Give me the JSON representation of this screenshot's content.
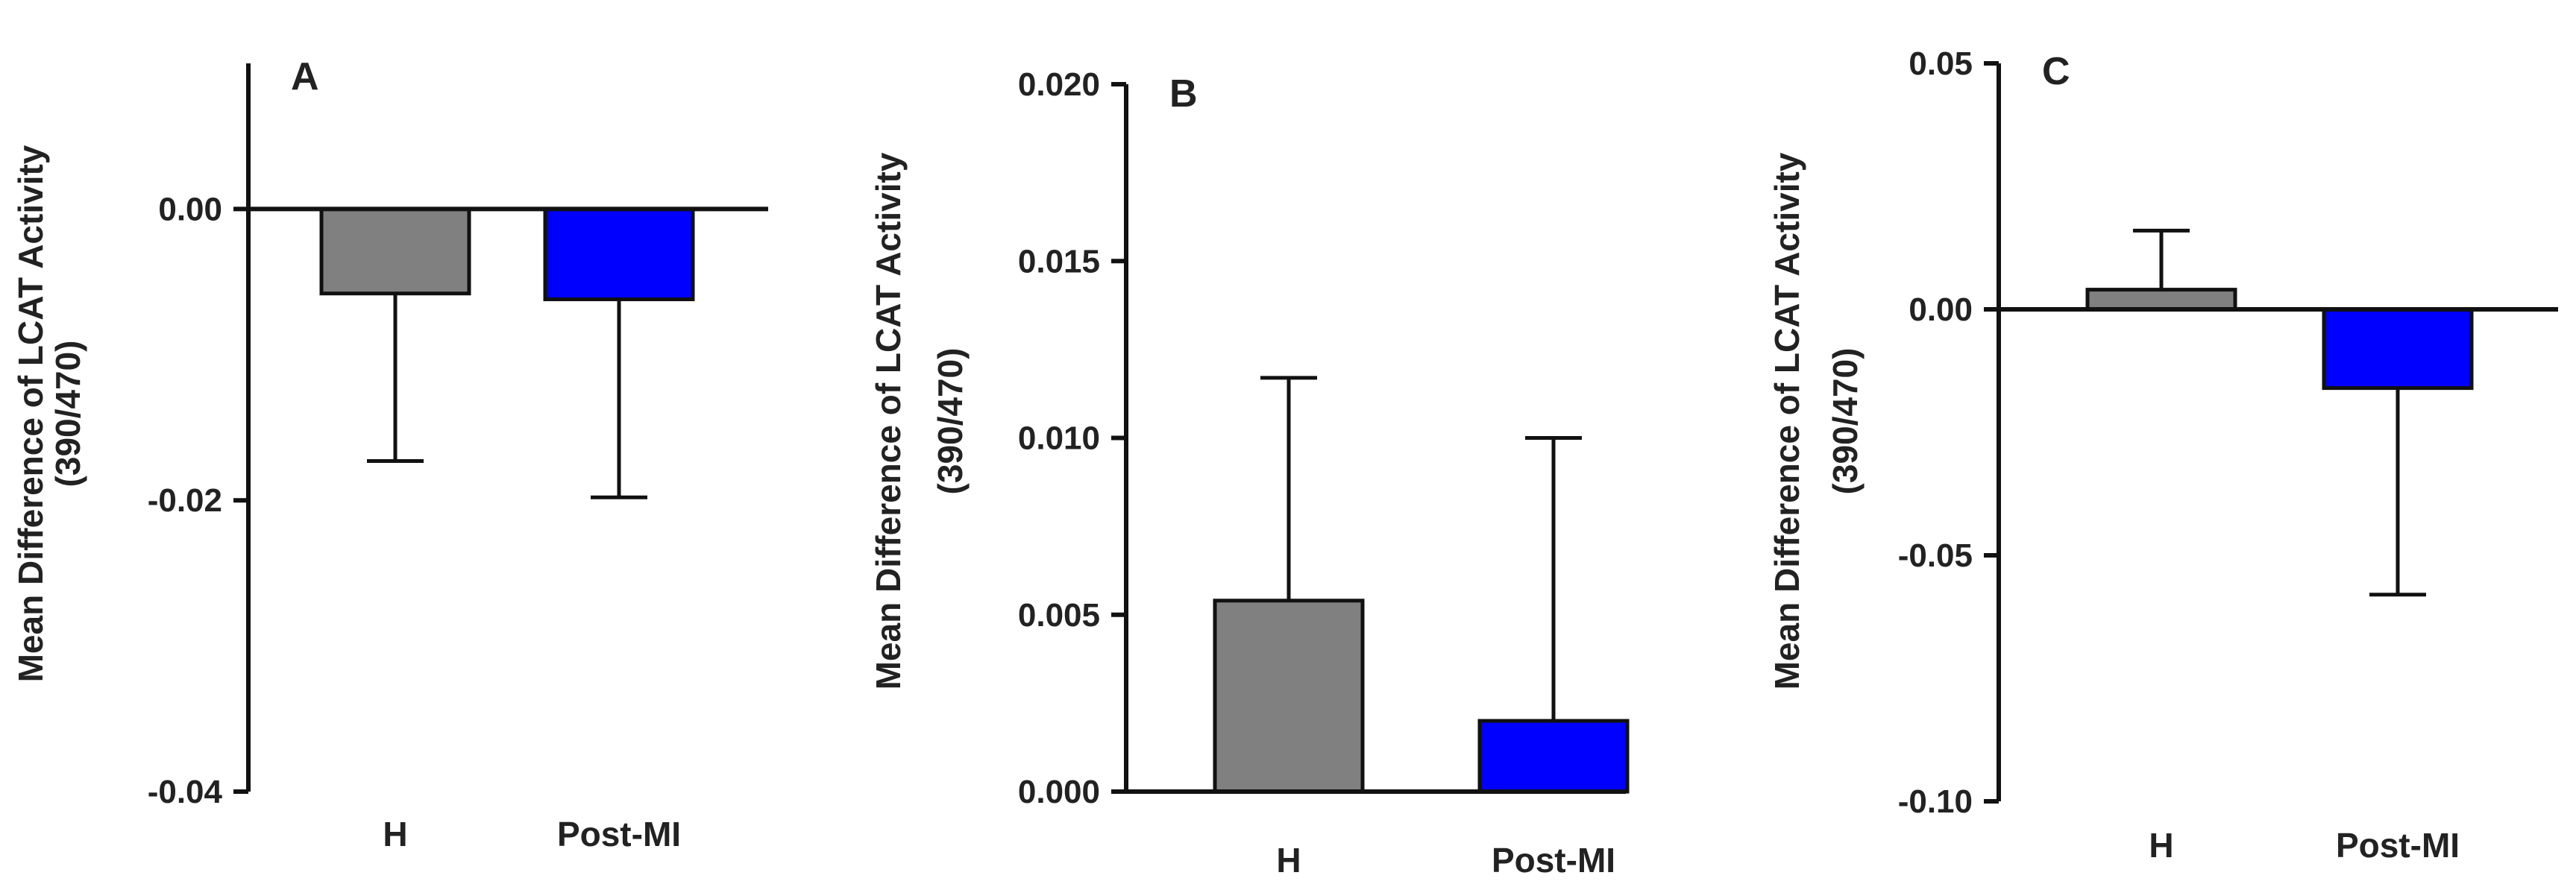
{
  "chart_data": [
    {
      "type": "bar",
      "panel_label": "A",
      "ylabel_line1": "Mean Difference of LCAT Activity",
      "ylabel_line2": "(390/470)",
      "categories": [
        "H",
        "Post-MI"
      ],
      "values": [
        -0.0058,
        -0.0062
      ],
      "error_bars": [
        -0.0115,
        -0.0136
      ],
      "colors": [
        "#808080",
        "#0000ff"
      ],
      "ylim": [
        -0.04,
        0.01
      ],
      "yticks": [
        -0.04,
        -0.02,
        0.0
      ],
      "ytick_labels": [
        "-0.04",
        "-0.02",
        "0.00"
      ],
      "grid": false
    },
    {
      "type": "bar",
      "panel_label": "B",
      "ylabel_line1": "Mean Difference of LCAT Activity",
      "ylabel_line2": "(390/470)",
      "categories": [
        "H",
        "Post-MI"
      ],
      "values": [
        0.0054,
        0.002
      ],
      "error_bars": [
        0.0063,
        0.008
      ],
      "colors": [
        "#808080",
        "#0000ff"
      ],
      "ylim": [
        0,
        0.02
      ],
      "yticks": [
        0,
        0.005,
        0.01,
        0.015,
        0.02
      ],
      "ytick_labels": [
        "0.000",
        "0.005",
        "0.010",
        "0.015",
        "0.020"
      ],
      "grid": false
    },
    {
      "type": "bar",
      "panel_label": "C",
      "ylabel_line1": "Mean Difference of LCAT Activity",
      "ylabel_line2": "(390/470)",
      "categories": [
        "H",
        "Post-MI"
      ],
      "values": [
        0.004,
        -0.016
      ],
      "error_bars": [
        0.012,
        -0.042
      ],
      "colors": [
        "#808080",
        "#0000ff"
      ],
      "ylim": [
        -0.1,
        0.05
      ],
      "yticks": [
        -0.1,
        -0.05,
        0.0,
        0.05
      ],
      "ytick_labels": [
        "-0.10",
        "-0.05",
        "0.00",
        "0.05"
      ],
      "grid": false
    }
  ]
}
